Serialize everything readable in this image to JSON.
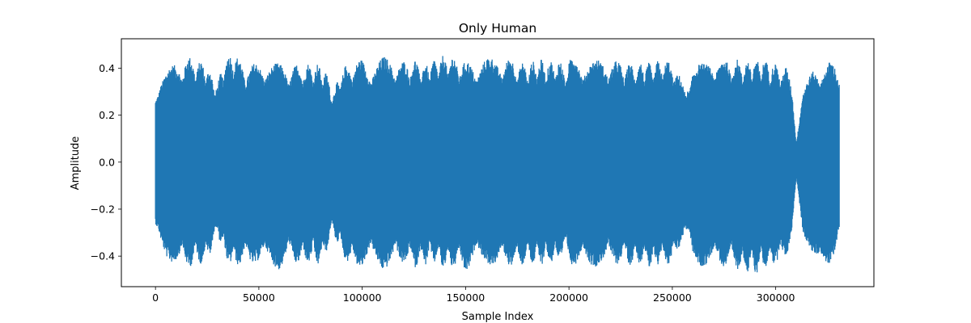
{
  "chart_data": {
    "type": "line",
    "title": "Only Human",
    "xlabel": "Sample Index",
    "ylabel": "Amplitude",
    "xlim": [
      -16500,
      347500
    ],
    "ylim": [
      -0.53,
      0.525
    ],
    "xticks": [
      0,
      50000,
      100000,
      150000,
      200000,
      250000,
      300000
    ],
    "xtick_labels": [
      "0",
      "50000",
      "100000",
      "150000",
      "200000",
      "250000",
      "300000"
    ],
    "yticks": [
      -0.4,
      -0.2,
      0.0,
      0.2,
      0.4
    ],
    "ytick_labels": [
      "−0.4",
      "−0.2",
      "0.0",
      "0.2",
      "0.4"
    ],
    "grid": false,
    "legend": "none",
    "series": [
      {
        "color": "#1f77b4",
        "x_range": [
          0,
          330750
        ],
        "envelope_note_free": true,
        "envelope_x": [
          0,
          2000,
          5000,
          10000,
          15000,
          20000,
          25000,
          28000,
          30000,
          33000,
          37000,
          40000,
          45000,
          50000,
          55000,
          60000,
          65000,
          70000,
          75000,
          80000,
          84000,
          86000,
          90000,
          95000,
          100000,
          105000,
          110000,
          115000,
          120000,
          125000,
          130000,
          135000,
          140000,
          145000,
          150000,
          155000,
          160000,
          165000,
          170000,
          175000,
          180000,
          185000,
          190000,
          195000,
          198000,
          200000,
          205000,
          210000,
          215000,
          220000,
          225000,
          230000,
          235000,
          240000,
          245000,
          250000,
          254000,
          256000,
          260000,
          265000,
          270000,
          275000,
          280000,
          285000,
          290000,
          295000,
          300000,
          305000,
          308000,
          310000,
          313000,
          318000,
          322000,
          326000,
          330750
        ],
        "envelope_max": [
          0.3,
          0.38,
          0.4,
          0.42,
          0.45,
          0.44,
          0.42,
          0.36,
          0.34,
          0.43,
          0.48,
          0.45,
          0.4,
          0.44,
          0.43,
          0.42,
          0.41,
          0.42,
          0.42,
          0.42,
          0.36,
          0.3,
          0.4,
          0.43,
          0.44,
          0.42,
          0.45,
          0.44,
          0.43,
          0.44,
          0.42,
          0.44,
          0.46,
          0.45,
          0.43,
          0.43,
          0.45,
          0.44,
          0.45,
          0.43,
          0.42,
          0.44,
          0.43,
          0.44,
          0.4,
          0.46,
          0.44,
          0.43,
          0.44,
          0.44,
          0.43,
          0.42,
          0.43,
          0.42,
          0.44,
          0.43,
          0.36,
          0.32,
          0.42,
          0.42,
          0.45,
          0.44,
          0.44,
          0.43,
          0.44,
          0.44,
          0.42,
          0.41,
          0.32,
          0.1,
          0.3,
          0.4,
          0.42,
          0.43,
          0.42
        ],
        "envelope_min": [
          -0.3,
          -0.38,
          -0.42,
          -0.43,
          -0.45,
          -0.44,
          -0.42,
          -0.36,
          -0.3,
          -0.4,
          -0.46,
          -0.44,
          -0.43,
          -0.44,
          -0.44,
          -0.46,
          -0.42,
          -0.44,
          -0.43,
          -0.44,
          -0.35,
          -0.3,
          -0.4,
          -0.45,
          -0.45,
          -0.43,
          -0.46,
          -0.44,
          -0.43,
          -0.45,
          -0.44,
          -0.43,
          -0.46,
          -0.45,
          -0.47,
          -0.43,
          -0.43,
          -0.45,
          -0.44,
          -0.45,
          -0.43,
          -0.44,
          -0.43,
          -0.44,
          -0.38,
          -0.44,
          -0.44,
          -0.45,
          -0.44,
          -0.44,
          -0.43,
          -0.44,
          -0.43,
          -0.46,
          -0.44,
          -0.44,
          -0.35,
          -0.3,
          -0.43,
          -0.45,
          -0.44,
          -0.45,
          -0.45,
          -0.47,
          -0.48,
          -0.45,
          -0.44,
          -0.41,
          -0.3,
          -0.08,
          -0.3,
          -0.4,
          -0.48,
          -0.44,
          -0.36
        ]
      }
    ]
  }
}
